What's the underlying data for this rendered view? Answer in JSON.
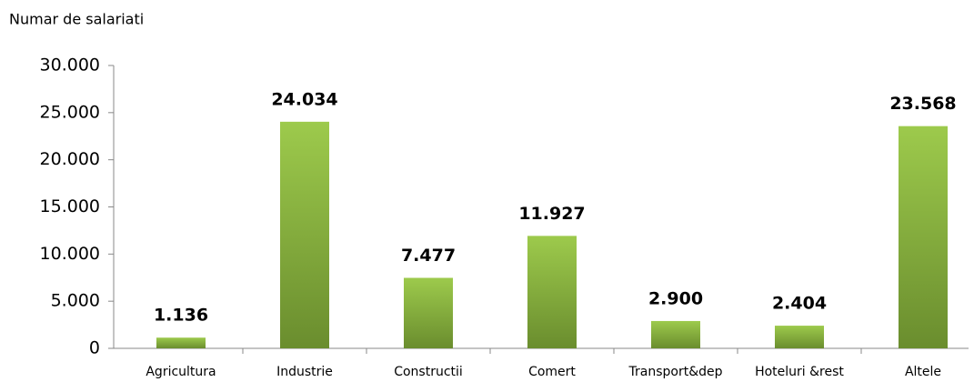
{
  "chart_data": {
    "type": "bar",
    "title": "Numar de salariati",
    "categories": [
      "Agricultura",
      "Industrie",
      "Constructii",
      "Comert",
      "Transport&dep",
      "Hoteluri &rest",
      "Altele"
    ],
    "values": [
      1136,
      24034,
      7477,
      11927,
      2900,
      2404,
      23568
    ],
    "value_labels": [
      "1.136",
      "24.034",
      "7.477",
      "11.927",
      "2.900",
      "2.404",
      "23.568"
    ],
    "color": "#8db640",
    "ylim": [
      0,
      30000
    ],
    "yticks": [
      0,
      {
        "value": 5000,
        "label": "5.000"
      },
      {
        "value": 10000,
        "label": "10.000"
      },
      {
        "value": 15000,
        "label": "15.000"
      },
      {
        "value": 20000,
        "label": "20.000"
      },
      {
        "value": 25000,
        "label": "25.000"
      },
      {
        "value": 30000,
        "label": "30.000"
      }
    ],
    "grid": false
  }
}
